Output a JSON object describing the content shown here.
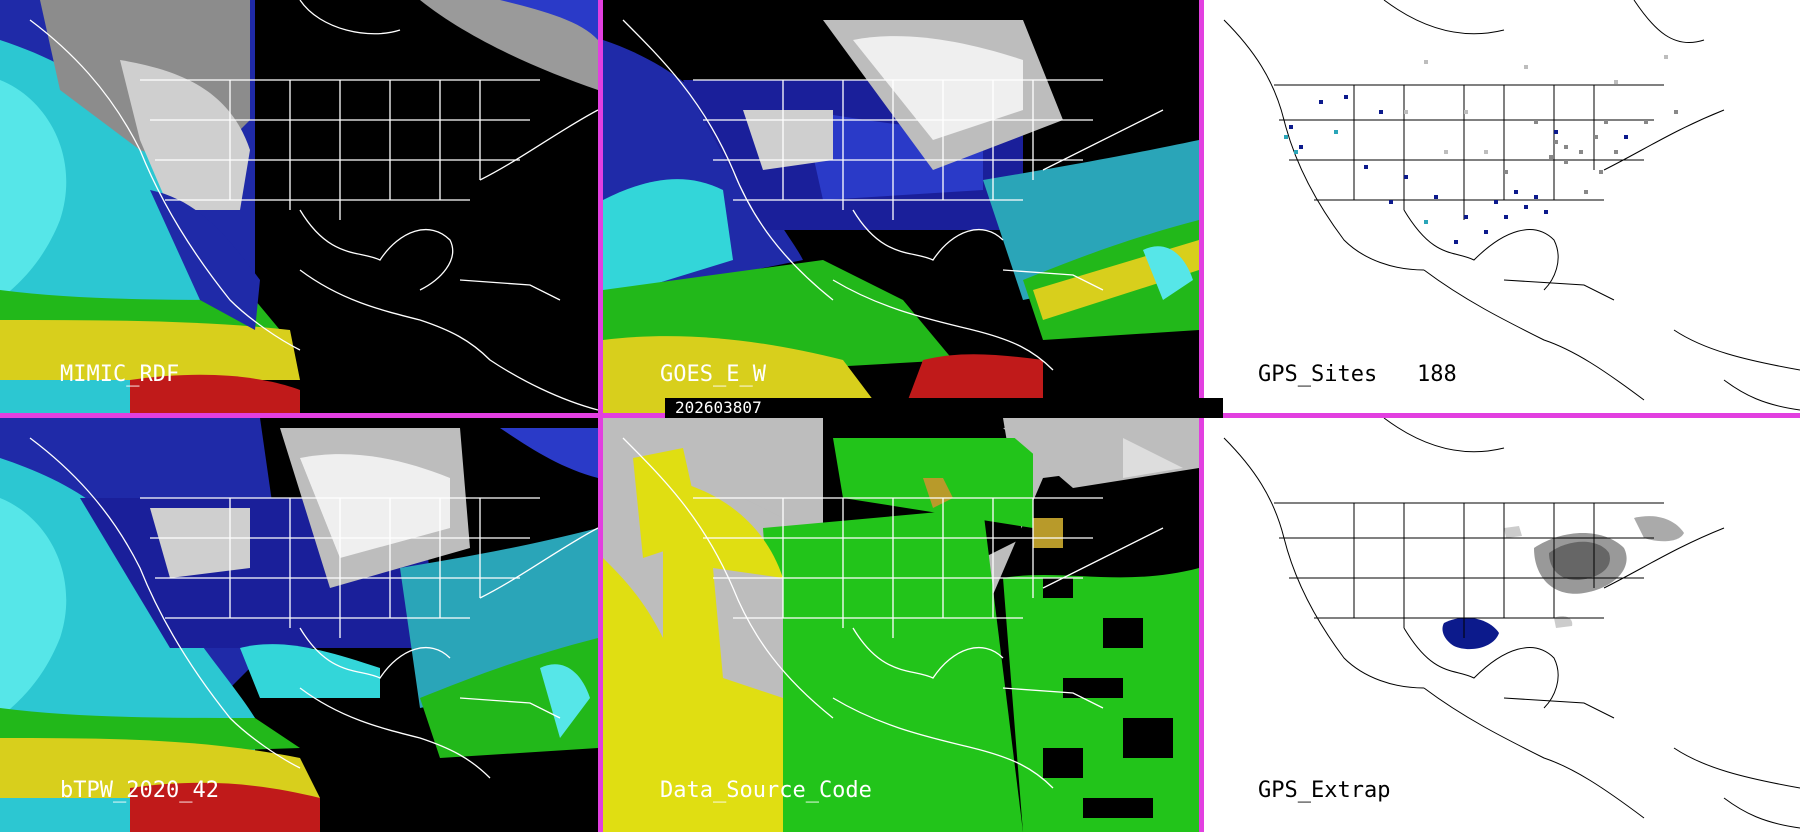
{
  "panels": {
    "mimic": {
      "label": "MIMIC_RDF"
    },
    "goes": {
      "label": "GOES_E_W"
    },
    "gps_sites": {
      "label": "GPS_Sites",
      "count": "188"
    },
    "btpw": {
      "label": "bTPW_2020_42"
    },
    "data_source": {
      "label": "Data_Source_Code"
    },
    "gps_extrap": {
      "label": "GPS_Extrap"
    }
  },
  "timestamp": "202603807",
  "colors": {
    "divider": "#e23fe0",
    "ocean_cyan": "#33d6d9",
    "ocean_teal": "#2aa5b8",
    "deep_blue": "#0c1a8c",
    "mid_blue": "#2a3ac8",
    "green": "#22c41a",
    "yellow": "#d9d21a",
    "red": "#c41a1a",
    "gray": "#bdbdbd",
    "black": "#000000"
  }
}
